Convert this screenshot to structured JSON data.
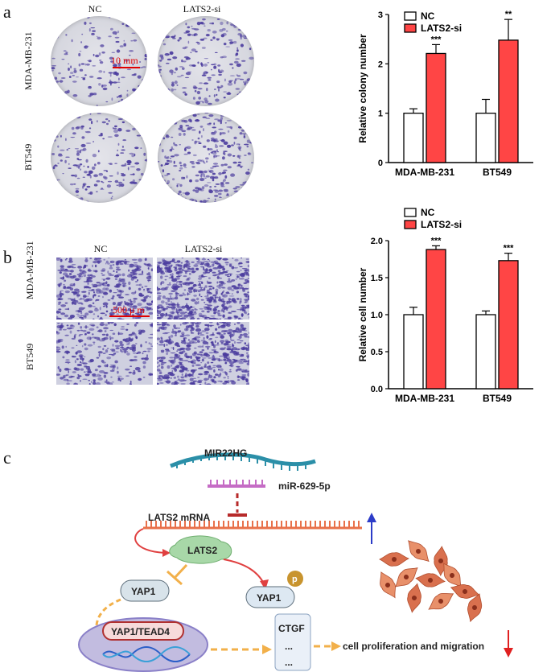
{
  "panels": {
    "a": "a",
    "b": "b",
    "c": "c"
  },
  "panel_a": {
    "col_labels": [
      "NC",
      "LATS2-si"
    ],
    "row_labels": [
      "MDA-MB-231",
      "BT549"
    ],
    "scale_bar": "10 mm"
  },
  "panel_b": {
    "col_labels": [
      "NC",
      "LATS2-si"
    ],
    "row_labels": [
      "MDA-MB-231",
      "BT549"
    ],
    "scale_bar": "500 μ m"
  },
  "colors": {
    "nc": "#ffffff",
    "si": "#ff4545",
    "stain": "#4b3c9e"
  },
  "chart_data": [
    {
      "type": "bar",
      "ylabel": "Relative colony number",
      "categories": [
        "MDA-MB-231",
        "BT549"
      ],
      "ylim": [
        0,
        3
      ],
      "yticks": [
        "0",
        "1",
        "2",
        "3"
      ],
      "legend": "top-left",
      "series": [
        {
          "name": "NC",
          "values": [
            1.0,
            1.0
          ],
          "errors": [
            0.09,
            0.28
          ]
        },
        {
          "name": "LATS2-si",
          "values": [
            2.21,
            2.48
          ],
          "errors": [
            0.18,
            0.42
          ]
        }
      ],
      "significance": [
        "***",
        "**"
      ]
    },
    {
      "type": "bar",
      "ylabel": "Relative cell number",
      "categories": [
        "MDA-MB-231",
        "BT549"
      ],
      "ylim": [
        0,
        2.0
      ],
      "yticks": [
        "0.0",
        "0.5",
        "1.0",
        "1.5",
        "2.0"
      ],
      "legend": "top-left",
      "series": [
        {
          "name": "NC",
          "values": [
            1.0,
            1.0
          ],
          "errors": [
            0.1,
            0.05
          ]
        },
        {
          "name": "LATS2-si",
          "values": [
            1.88,
            1.73
          ],
          "errors": [
            0.05,
            0.1
          ]
        }
      ],
      "significance": [
        "***",
        "***"
      ]
    }
  ],
  "panel_c": {
    "mir22hg": "MIR22HG",
    "mirna": "miR-629-5p",
    "lats2_mrna": "LATS2 mRNA",
    "lats2": "LATS2",
    "yap1": "YAP1",
    "yap1_p": "YAP1",
    "p": "p",
    "complex": "YAP1/TEAD4",
    "targets": [
      "CTGF",
      "...",
      "..."
    ],
    "outcome": "cell proliferation and migration"
  }
}
